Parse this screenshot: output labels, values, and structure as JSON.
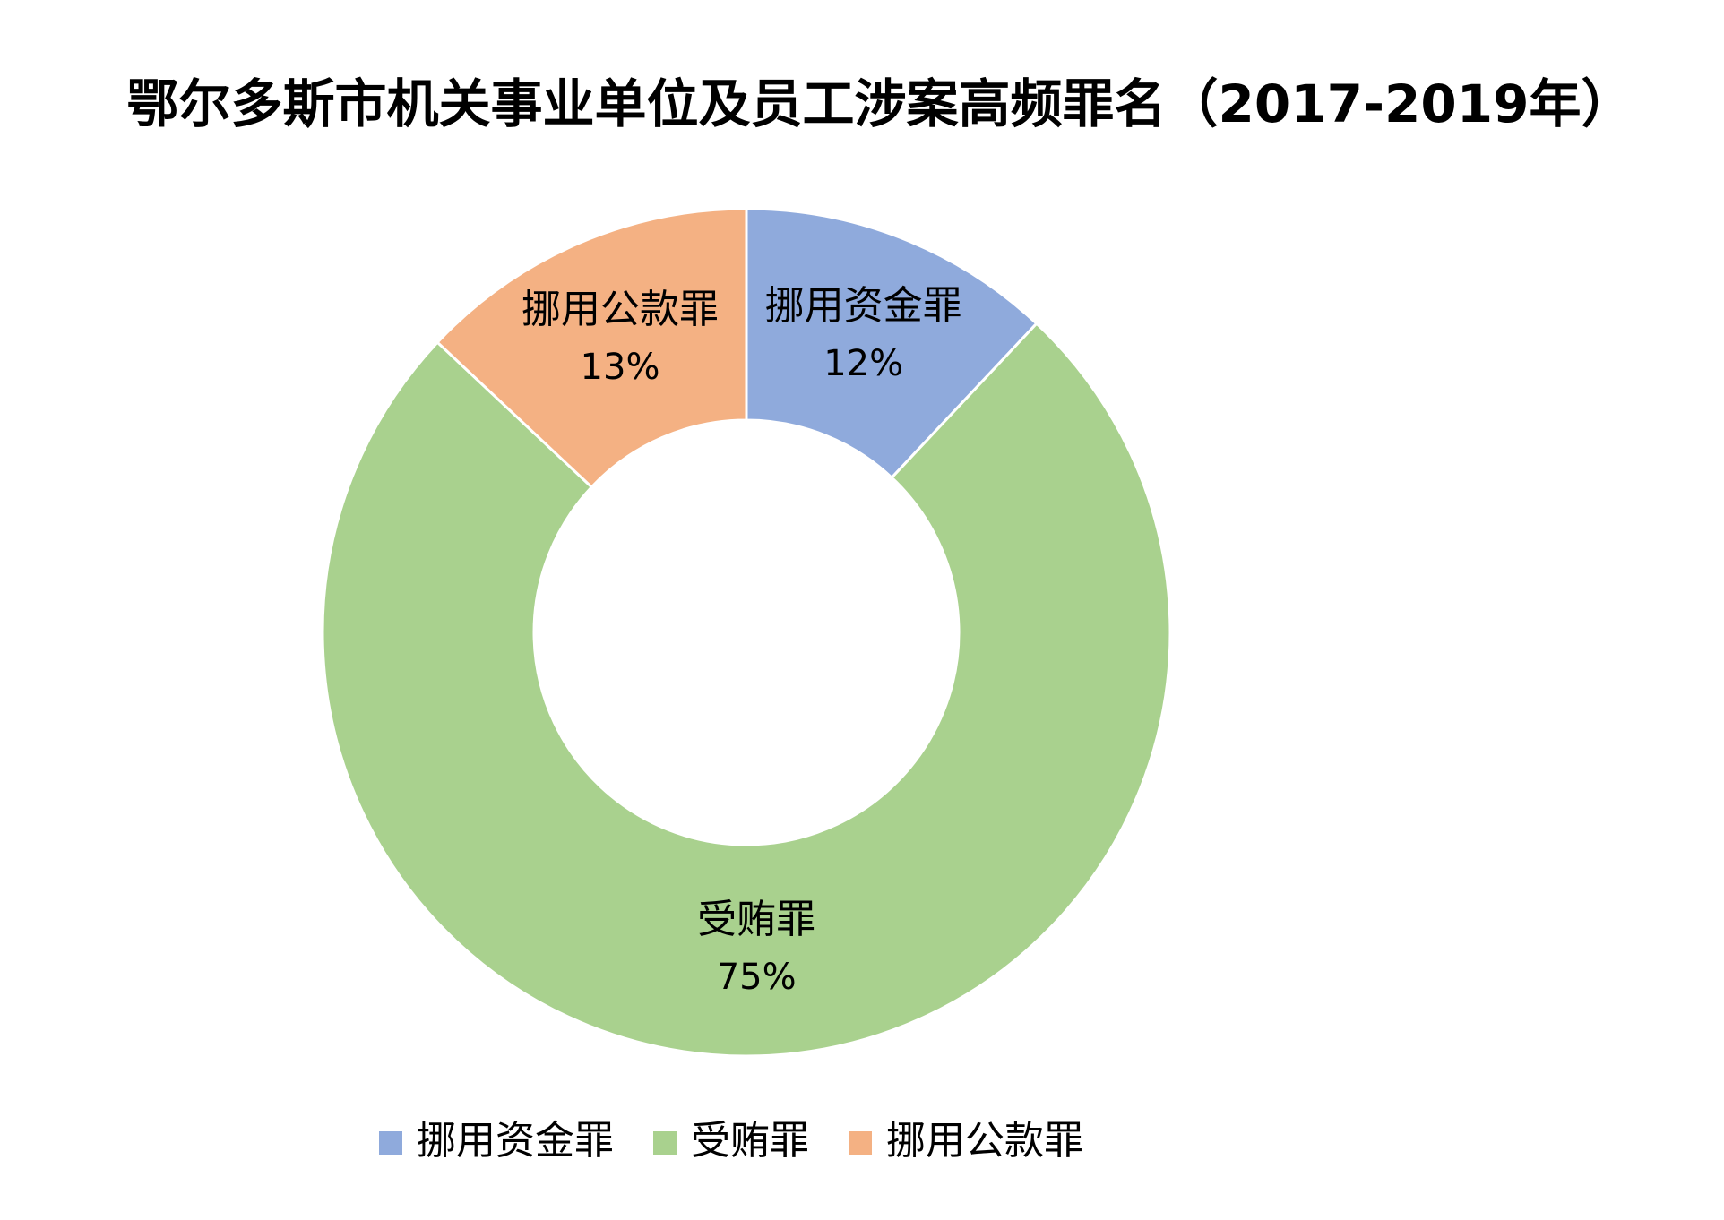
{
  "chart_data": {
    "type": "pie",
    "title": "鄂尔多斯市机关事业单位及员工涉案高频罪名（2017-2019年）",
    "categories": [
      "挪用资金罪",
      "受贿罪",
      "挪用公款罪"
    ],
    "values": [
      12,
      75,
      13
    ],
    "value_labels": [
      "12%",
      "75%",
      "13%"
    ],
    "colors": [
      "#8faadc",
      "#a9d18e",
      "#f4b183"
    ],
    "hole": true,
    "legend": "bottom"
  }
}
